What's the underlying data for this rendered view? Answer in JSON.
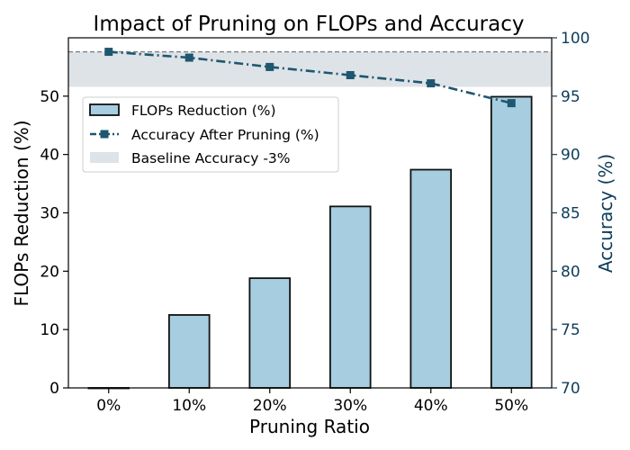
{
  "chart_data": {
    "type": "bar",
    "title": "Impact of Pruning on FLOPs and Accuracy",
    "xlabel": "Pruning Ratio",
    "ylabel": "FLOPs Reduction (%)",
    "y2label": "Accuracy (%)",
    "categories": [
      "0%",
      "10%",
      "20%",
      "30%",
      "40%",
      "50%"
    ],
    "ylim": [
      0,
      60
    ],
    "y2lim": [
      70,
      100
    ],
    "yticks": [
      0,
      10,
      20,
      30,
      40,
      50
    ],
    "y2ticks": [
      70,
      75,
      80,
      85,
      90,
      95,
      100
    ],
    "grid": false,
    "legend_position": "upper-left",
    "series": [
      {
        "name": "FLOPs Reduction (%)",
        "type": "bar",
        "axis": "left",
        "values": [
          0,
          12.5,
          18.8,
          31.1,
          37.4,
          49.9
        ],
        "color": "#a6cee0",
        "edge_color": "#111111"
      },
      {
        "name": "Accuracy After Pruning (%)",
        "type": "line",
        "axis": "right",
        "values": [
          98.8,
          98.3,
          97.5,
          96.8,
          96.1,
          94.4
        ],
        "color": "#1f5670",
        "marker": "square",
        "line_style": "dash-dot"
      }
    ],
    "baseline_band": {
      "name": "Baseline Accuracy -3%",
      "axis": "right",
      "from": 95.8,
      "to": 98.8,
      "color": "#dde3e7",
      "line_color": "#808080"
    },
    "right_axis_color": "#0d3d5a"
  }
}
